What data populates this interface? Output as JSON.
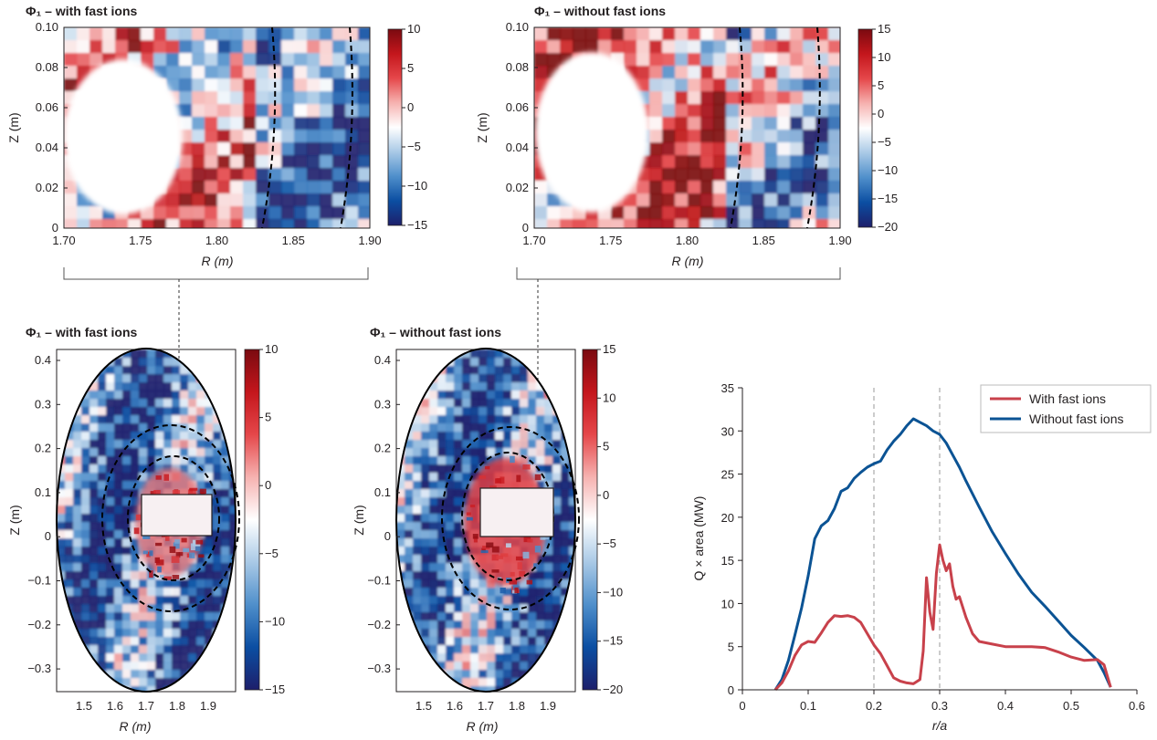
{
  "colors": {
    "with_fast_ions": "#c8414b",
    "without_fast_ions": "#0b5394",
    "colormap": [
      "#1d1f6b",
      "#0b4ea2",
      "#4f8fcb",
      "#a9c9e6",
      "#ffffff",
      "#f6b2b0",
      "#e5474a",
      "#c4161c",
      "#7a0a10"
    ]
  },
  "chart_data": [
    {
      "type": "heatmap",
      "title": "Φ₁ – with fast ions",
      "xlabel": "R (m)",
      "ylabel": "Z (m)",
      "xlim": [
        1.7,
        1.9
      ],
      "ylim": [
        0,
        0.1
      ],
      "xticks": [
        "1.70",
        "1.75",
        "1.80",
        "1.85",
        "1.90"
      ],
      "yticks": [
        "0",
        "0.02",
        "0.04",
        "0.06",
        "0.08",
        "0.10"
      ],
      "colorbar": {
        "range": [
          -15,
          10
        ],
        "ticks": [
          "10",
          "5",
          "0",
          "−5",
          "−10",
          "−15"
        ]
      }
    },
    {
      "type": "heatmap",
      "title": "Φ₁ – without fast ions",
      "xlabel": "R (m)",
      "ylabel": "Z (m)",
      "xlim": [
        1.7,
        1.9
      ],
      "ylim": [
        0,
        0.1
      ],
      "xticks": [
        "1.70",
        "1.75",
        "1.80",
        "1.85",
        "1.90"
      ],
      "yticks": [
        "0",
        "0.02",
        "0.04",
        "0.06",
        "0.08",
        "0.10"
      ],
      "colorbar": {
        "range": [
          -20,
          15
        ],
        "ticks": [
          "15",
          "10",
          "5",
          "0",
          "−5",
          "−10",
          "−15",
          "−20"
        ]
      }
    },
    {
      "type": "heatmap",
      "title": "Φ₁ – with fast ions",
      "xlabel": "R (m)",
      "ylabel": "Z (m)",
      "xticks": [
        "1.5",
        "1.6",
        "1.7",
        "1.8",
        "1.9"
      ],
      "yticks": [
        "0.4",
        "0.3",
        "0.2",
        "0.1",
        "0",
        "−0.1",
        "−0.2",
        "−0.3"
      ],
      "colorbar": {
        "range": [
          -15,
          10
        ],
        "ticks": [
          "10",
          "5",
          "0",
          "−5",
          "−10",
          "−15"
        ]
      }
    },
    {
      "type": "heatmap",
      "title": "Φ₁ – without fast ions",
      "xlabel": "R (m)",
      "ylabel": "Z (m)",
      "xticks": [
        "1.5",
        "1.6",
        "1.7",
        "1.8",
        "1.9"
      ],
      "yticks": [
        "0.4",
        "0.3",
        "0.2",
        "0.1",
        "0",
        "−0.1",
        "−0.2",
        "−0.3"
      ],
      "colorbar": {
        "range": [
          -20,
          15
        ],
        "ticks": [
          "15",
          "10",
          "5",
          "0",
          "−5",
          "−10",
          "−15",
          "−20"
        ]
      }
    },
    {
      "type": "line",
      "xlabel": "r/a",
      "ylabel": "Q × area (MW)",
      "xlim": [
        0,
        0.6
      ],
      "ylim": [
        0,
        35
      ],
      "xticks": [
        "0",
        "0.1",
        "0.2",
        "0.3",
        "0.4",
        "0.5",
        "0.6"
      ],
      "yticks": [
        "0",
        "5",
        "10",
        "15",
        "20",
        "25",
        "30",
        "35"
      ],
      "vlines": [
        0.2,
        0.3
      ],
      "legend": "top-right",
      "series": [
        {
          "name": "With fast ions",
          "color": "#c8414b",
          "x": [
            0.05,
            0.06,
            0.07,
            0.08,
            0.09,
            0.1,
            0.11,
            0.12,
            0.13,
            0.14,
            0.15,
            0.16,
            0.17,
            0.18,
            0.19,
            0.2,
            0.21,
            0.22,
            0.23,
            0.24,
            0.25,
            0.26,
            0.27,
            0.275,
            0.28,
            0.285,
            0.29,
            0.295,
            0.3,
            0.305,
            0.31,
            0.315,
            0.32,
            0.325,
            0.33,
            0.34,
            0.35,
            0.36,
            0.38,
            0.4,
            0.42,
            0.44,
            0.46,
            0.48,
            0.5,
            0.52,
            0.54,
            0.55,
            0.56
          ],
          "y": [
            0,
            0.8,
            2.2,
            4.0,
            5.2,
            5.6,
            5.5,
            6.6,
            7.8,
            8.6,
            8.5,
            8.6,
            8.4,
            7.8,
            6.5,
            5.2,
            4.2,
            2.8,
            1.4,
            1.0,
            0.8,
            0.7,
            1.2,
            4.5,
            13.0,
            9.0,
            7.0,
            13.5,
            16.8,
            15.0,
            13.8,
            14.6,
            12.0,
            10.5,
            10.8,
            8.4,
            6.5,
            5.6,
            5.3,
            5.0,
            5.0,
            5.0,
            4.9,
            4.4,
            3.8,
            3.4,
            3.5,
            2.9,
            0.3
          ]
        },
        {
          "name": "Without fast ions",
          "color": "#0b5394",
          "x": [
            0.05,
            0.06,
            0.07,
            0.08,
            0.09,
            0.1,
            0.11,
            0.12,
            0.13,
            0.14,
            0.15,
            0.16,
            0.17,
            0.18,
            0.19,
            0.2,
            0.21,
            0.22,
            0.23,
            0.24,
            0.25,
            0.26,
            0.27,
            0.28,
            0.29,
            0.3,
            0.31,
            0.32,
            0.33,
            0.34,
            0.36,
            0.38,
            0.4,
            0.42,
            0.44,
            0.46,
            0.48,
            0.5,
            0.52,
            0.54,
            0.55,
            0.56
          ],
          "y": [
            0,
            1.2,
            3.4,
            6.4,
            9.5,
            13.2,
            17.5,
            19.0,
            19.6,
            21.0,
            23.0,
            23.4,
            24.5,
            25.2,
            25.8,
            26.2,
            26.5,
            27.8,
            28.8,
            29.6,
            30.6,
            31.4,
            31.0,
            30.6,
            30.0,
            29.6,
            28.6,
            27.2,
            25.8,
            24.2,
            21.2,
            18.3,
            15.8,
            13.4,
            11.3,
            9.7,
            8.0,
            6.3,
            4.9,
            3.4,
            2.0,
            0.3
          ]
        }
      ]
    }
  ]
}
